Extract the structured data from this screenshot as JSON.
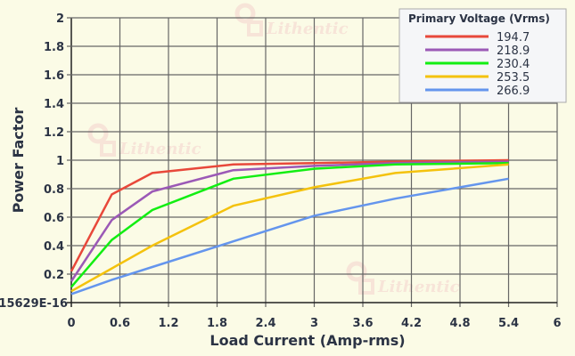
{
  "chart_data": {
    "type": "line",
    "xlabel": "Load Current (Amp-rms)",
    "ylabel": "Power Factor",
    "xlim": [
      0,
      6
    ],
    "ylim": [
      0,
      2
    ],
    "xticks": [
      "0",
      "0.6",
      "1.2",
      "1.8",
      "2.4",
      "3",
      "3.6",
      "4.2",
      "4.8",
      "5.4",
      "6"
    ],
    "yticks": [
      "15629E-16",
      "0.2",
      "0.4",
      "0.6",
      "0.8",
      "1",
      "1.2",
      "1.4",
      "1.6",
      "1.8",
      "2"
    ],
    "grid": true,
    "legend_title": "Primary Voltage (Vrms)",
    "legend_placement": "top-right",
    "x": [
      0,
      0.5,
      1,
      2,
      3,
      4,
      5.4
    ],
    "series": [
      {
        "name": "194.7",
        "color": "#e8483a",
        "values": [
          0.22,
          0.76,
          0.91,
          0.97,
          0.98,
          0.99,
          1.0
        ]
      },
      {
        "name": "218.9",
        "color": "#9b59b6",
        "values": [
          0.15,
          0.58,
          0.78,
          0.93,
          0.96,
          0.98,
          0.99
        ]
      },
      {
        "name": "230.4",
        "color": "#12ee12",
        "values": [
          0.11,
          0.44,
          0.65,
          0.87,
          0.94,
          0.97,
          0.98
        ]
      },
      {
        "name": "253.5",
        "color": "#f4c20d",
        "values": [
          0.08,
          0.24,
          0.4,
          0.68,
          0.81,
          0.91,
          0.97
        ]
      },
      {
        "name": "266.9",
        "color": "#6495ed",
        "values": [
          0.06,
          0.16,
          0.25,
          0.43,
          0.61,
          0.73,
          0.87
        ]
      }
    ]
  },
  "watermark": "Lithentic"
}
